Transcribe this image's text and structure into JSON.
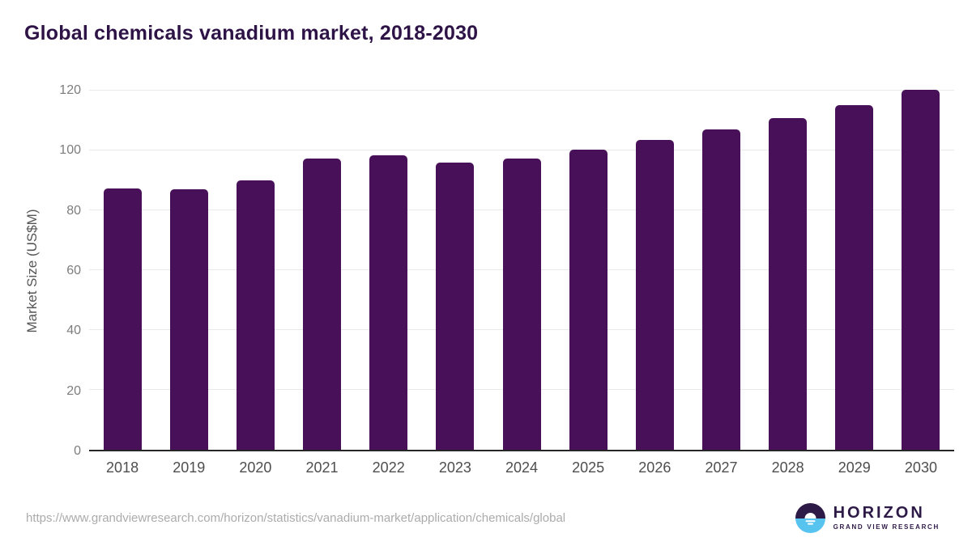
{
  "title": "Global chemicals vanadium market, 2018-2030",
  "chart_data": {
    "type": "bar",
    "title": "Global chemicals vanadium market, 2018-2030",
    "categories": [
      "2018",
      "2019",
      "2020",
      "2021",
      "2022",
      "2023",
      "2024",
      "2025",
      "2026",
      "2027",
      "2028",
      "2029",
      "2030"
    ],
    "values": [
      87.4,
      87.1,
      90.1,
      97.4,
      98.3,
      96.0,
      97.2,
      100.2,
      103.4,
      106.9,
      110.7,
      115.1,
      120.3
    ],
    "xlabel": "",
    "ylabel": "Market Size (US$M)",
    "ylim": [
      0,
      120
    ],
    "yticks": [
      0,
      20,
      40,
      60,
      80,
      100,
      120
    ],
    "grid": "horizontal-only",
    "legend": "none",
    "bar_color": "#481058",
    "gridline_color": "#e9e9e9",
    "axis_line_color": "#262626"
  },
  "footer": {
    "source_url": "https://www.grandviewresearch.com/horizon/statistics/vanadium-market/application/chemicals/global",
    "logo": {
      "icon": "horizon-sun-icon",
      "brand": "HORIZON",
      "sub_brand": "GRAND VIEW RESEARCH",
      "icon_top_color": "#2e1a47",
      "icon_bottom_color": "#57c4f0"
    }
  }
}
